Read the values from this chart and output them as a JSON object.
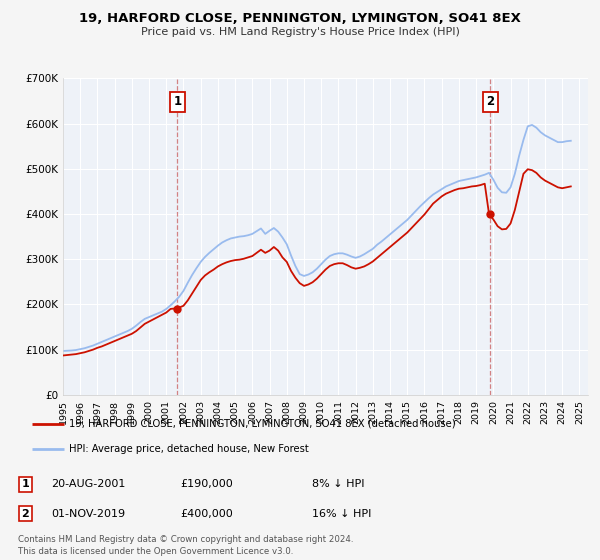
{
  "title": "19, HARFORD CLOSE, PENNINGTON, LYMINGTON, SO41 8EX",
  "subtitle": "Price paid vs. HM Land Registry's House Price Index (HPI)",
  "bg_color": "#f5f5f5",
  "plot_bg_color": "#eef2f8",
  "grid_color": "#ffffff",
  "ylim": [
    0,
    700000
  ],
  "yticks": [
    0,
    100000,
    200000,
    300000,
    400000,
    500000,
    600000,
    700000
  ],
  "ytick_labels": [
    "£0",
    "£100K",
    "£200K",
    "£300K",
    "£400K",
    "£500K",
    "£600K",
    "£700K"
  ],
  "xlim_start": 1995.0,
  "xlim_end": 2025.5,
  "hpi_color": "#99bbee",
  "price_color": "#cc1100",
  "sale1_date": 2001.64,
  "sale1_price": 190000,
  "sale2_date": 2019.83,
  "sale2_price": 400000,
  "legend_line1": "19, HARFORD CLOSE, PENNINGTON, LYMINGTON, SO41 8EX (detached house)",
  "legend_line2": "HPI: Average price, detached house, New Forest",
  "table_row1": [
    "1",
    "20-AUG-2001",
    "£190,000",
    "8% ↓ HPI"
  ],
  "table_row2": [
    "2",
    "01-NOV-2019",
    "£400,000",
    "16% ↓ HPI"
  ],
  "footer1": "Contains HM Land Registry data © Crown copyright and database right 2024.",
  "footer2": "This data is licensed under the Open Government Licence v3.0.",
  "hpi_data_x": [
    1995.0,
    1995.25,
    1995.5,
    1995.75,
    1996.0,
    1996.25,
    1996.5,
    1996.75,
    1997.0,
    1997.25,
    1997.5,
    1997.75,
    1998.0,
    1998.25,
    1998.5,
    1998.75,
    1999.0,
    1999.25,
    1999.5,
    1999.75,
    2000.0,
    2000.25,
    2000.5,
    2000.75,
    2001.0,
    2001.25,
    2001.5,
    2001.75,
    2002.0,
    2002.25,
    2002.5,
    2002.75,
    2003.0,
    2003.25,
    2003.5,
    2003.75,
    2004.0,
    2004.25,
    2004.5,
    2004.75,
    2005.0,
    2005.25,
    2005.5,
    2005.75,
    2006.0,
    2006.25,
    2006.5,
    2006.75,
    2007.0,
    2007.25,
    2007.5,
    2007.75,
    2008.0,
    2008.25,
    2008.5,
    2008.75,
    2009.0,
    2009.25,
    2009.5,
    2009.75,
    2010.0,
    2010.25,
    2010.5,
    2010.75,
    2011.0,
    2011.25,
    2011.5,
    2011.75,
    2012.0,
    2012.25,
    2012.5,
    2012.75,
    2013.0,
    2013.25,
    2013.5,
    2013.75,
    2014.0,
    2014.25,
    2014.5,
    2014.75,
    2015.0,
    2015.25,
    2015.5,
    2015.75,
    2016.0,
    2016.25,
    2016.5,
    2016.75,
    2017.0,
    2017.25,
    2017.5,
    2017.75,
    2018.0,
    2018.25,
    2018.5,
    2018.75,
    2019.0,
    2019.25,
    2019.5,
    2019.75,
    2020.0,
    2020.25,
    2020.5,
    2020.75,
    2021.0,
    2021.25,
    2021.5,
    2021.75,
    2022.0,
    2022.25,
    2022.5,
    2022.75,
    2023.0,
    2023.25,
    2023.5,
    2023.75,
    2024.0,
    2024.25,
    2024.5
  ],
  "hpi_data_y": [
    97000,
    97500,
    98000,
    99000,
    101000,
    103000,
    106000,
    109000,
    113000,
    117000,
    121000,
    125000,
    129000,
    133000,
    137000,
    141000,
    146000,
    153000,
    161000,
    168000,
    172000,
    176000,
    180000,
    184000,
    190000,
    198000,
    207000,
    217000,
    230000,
    248000,
    265000,
    280000,
    294000,
    305000,
    314000,
    322000,
    330000,
    337000,
    342000,
    346000,
    348000,
    350000,
    351000,
    353000,
    356000,
    362000,
    368000,
    356000,
    363000,
    369000,
    361000,
    348000,
    333000,
    308000,
    285000,
    267000,
    263000,
    266000,
    271000,
    279000,
    289000,
    299000,
    307000,
    311000,
    313000,
    313000,
    310000,
    306000,
    303000,
    306000,
    311000,
    317000,
    323000,
    332000,
    339000,
    347000,
    355000,
    363000,
    371000,
    379000,
    387000,
    397000,
    407000,
    417000,
    426000,
    435000,
    443000,
    449000,
    455000,
    461000,
    465000,
    469000,
    473000,
    475000,
    477000,
    479000,
    481000,
    484000,
    487000,
    491000,
    476000,
    458000,
    448000,
    447000,
    459000,
    489000,
    529000,
    564000,
    594000,
    597000,
    591000,
    581000,
    574000,
    569000,
    564000,
    559000,
    559000,
    561000,
    562000
  ],
  "price_data_x": [
    1995.0,
    1995.25,
    1995.5,
    1995.75,
    1996.0,
    1996.25,
    1996.5,
    1996.75,
    1997.0,
    1997.25,
    1997.5,
    1997.75,
    1998.0,
    1998.25,
    1998.5,
    1998.75,
    1999.0,
    1999.25,
    1999.5,
    1999.75,
    2000.0,
    2000.25,
    2000.5,
    2000.75,
    2001.0,
    2001.25,
    2001.5,
    2001.75,
    2002.0,
    2002.25,
    2002.5,
    2002.75,
    2003.0,
    2003.25,
    2003.5,
    2003.75,
    2004.0,
    2004.25,
    2004.5,
    2004.75,
    2005.0,
    2005.25,
    2005.5,
    2005.75,
    2006.0,
    2006.25,
    2006.5,
    2006.75,
    2007.0,
    2007.25,
    2007.5,
    2007.75,
    2008.0,
    2008.25,
    2008.5,
    2008.75,
    2009.0,
    2009.25,
    2009.5,
    2009.75,
    2010.0,
    2010.25,
    2010.5,
    2010.75,
    2011.0,
    2011.25,
    2011.5,
    2011.75,
    2012.0,
    2012.25,
    2012.5,
    2012.75,
    2013.0,
    2013.25,
    2013.5,
    2013.75,
    2014.0,
    2014.25,
    2014.5,
    2014.75,
    2015.0,
    2015.25,
    2015.5,
    2015.75,
    2016.0,
    2016.25,
    2016.5,
    2016.75,
    2017.0,
    2017.25,
    2017.5,
    2017.75,
    2018.0,
    2018.25,
    2018.5,
    2018.75,
    2019.0,
    2019.25,
    2019.5,
    2019.75,
    2020.0,
    2020.25,
    2020.5,
    2020.75,
    2021.0,
    2021.25,
    2021.5,
    2021.75,
    2022.0,
    2022.25,
    2022.5,
    2022.75,
    2023.0,
    2023.25,
    2023.5,
    2023.75,
    2024.0,
    2024.25,
    2024.5
  ],
  "price_data_y": [
    87000,
    88000,
    89000,
    90000,
    92000,
    94000,
    97000,
    100000,
    104000,
    107000,
    111000,
    115000,
    119000,
    123000,
    127000,
    131000,
    135000,
    141000,
    149000,
    157000,
    162000,
    167000,
    172000,
    177000,
    182000,
    190000,
    191000,
    193000,
    197000,
    209000,
    224000,
    239000,
    254000,
    264000,
    271000,
    277000,
    284000,
    289000,
    293000,
    296000,
    298000,
    299000,
    301000,
    304000,
    307000,
    314000,
    321000,
    314000,
    319000,
    327000,
    319000,
    304000,
    294000,
    274000,
    259000,
    247000,
    241000,
    244000,
    249000,
    257000,
    267000,
    277000,
    285000,
    289000,
    291000,
    291000,
    287000,
    282000,
    279000,
    281000,
    284000,
    289000,
    295000,
    303000,
    311000,
    319000,
    327000,
    335000,
    343000,
    351000,
    359000,
    369000,
    379000,
    389000,
    399000,
    411000,
    423000,
    431000,
    439000,
    445000,
    449000,
    453000,
    456000,
    457000,
    459000,
    461000,
    462000,
    464000,
    467000,
    400000,
    388000,
    373000,
    366000,
    367000,
    379000,
    409000,
    449000,
    489000,
    499000,
    497000,
    491000,
    481000,
    474000,
    469000,
    464000,
    459000,
    457000,
    459000,
    461000
  ]
}
